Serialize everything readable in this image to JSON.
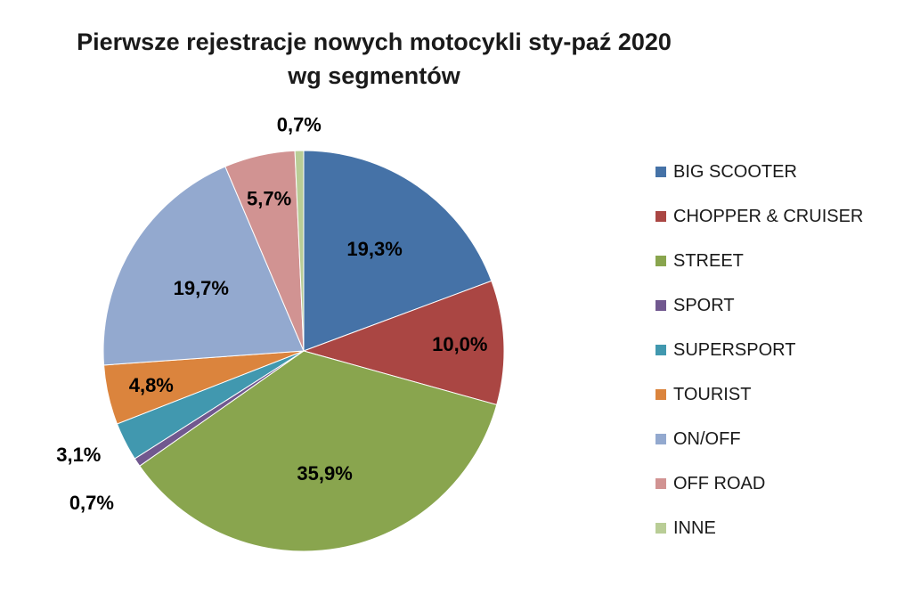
{
  "chart_data": {
    "type": "pie",
    "title": [
      "Pierwsze rejestracje nowych motocykli sty-paź 2020",
      "wg segmentów"
    ],
    "legend_position": "right",
    "slices": [
      {
        "label": "BIG SCOOTER",
        "value": 19.3,
        "display": "19,3%",
        "color": "#4572A7"
      },
      {
        "label": "CHOPPER & CRUISER",
        "value": 10.0,
        "display": "10,0%",
        "color": "#AA4643"
      },
      {
        "label": "STREET",
        "value": 35.9,
        "display": "35,9%",
        "color": "#89A54E"
      },
      {
        "label": "SPORT",
        "value": 0.7,
        "display": "0,7%",
        "color": "#71588F"
      },
      {
        "label": "SUPERSPORT",
        "value": 3.1,
        "display": "3,1%",
        "color": "#4198AF"
      },
      {
        "label": "TOURIST",
        "value": 4.8,
        "display": "4,8%",
        "color": "#DB843D"
      },
      {
        "label": "ON/OFF",
        "value": 19.7,
        "display": "19,7%",
        "color": "#93A9CF"
      },
      {
        "label": "OFF ROAD",
        "value": 5.7,
        "display": "5,7%",
        "color": "#D19392"
      },
      {
        "label": "INNE",
        "value": 0.7,
        "display": "0,7%",
        "color": "#B9CD96"
      }
    ]
  }
}
